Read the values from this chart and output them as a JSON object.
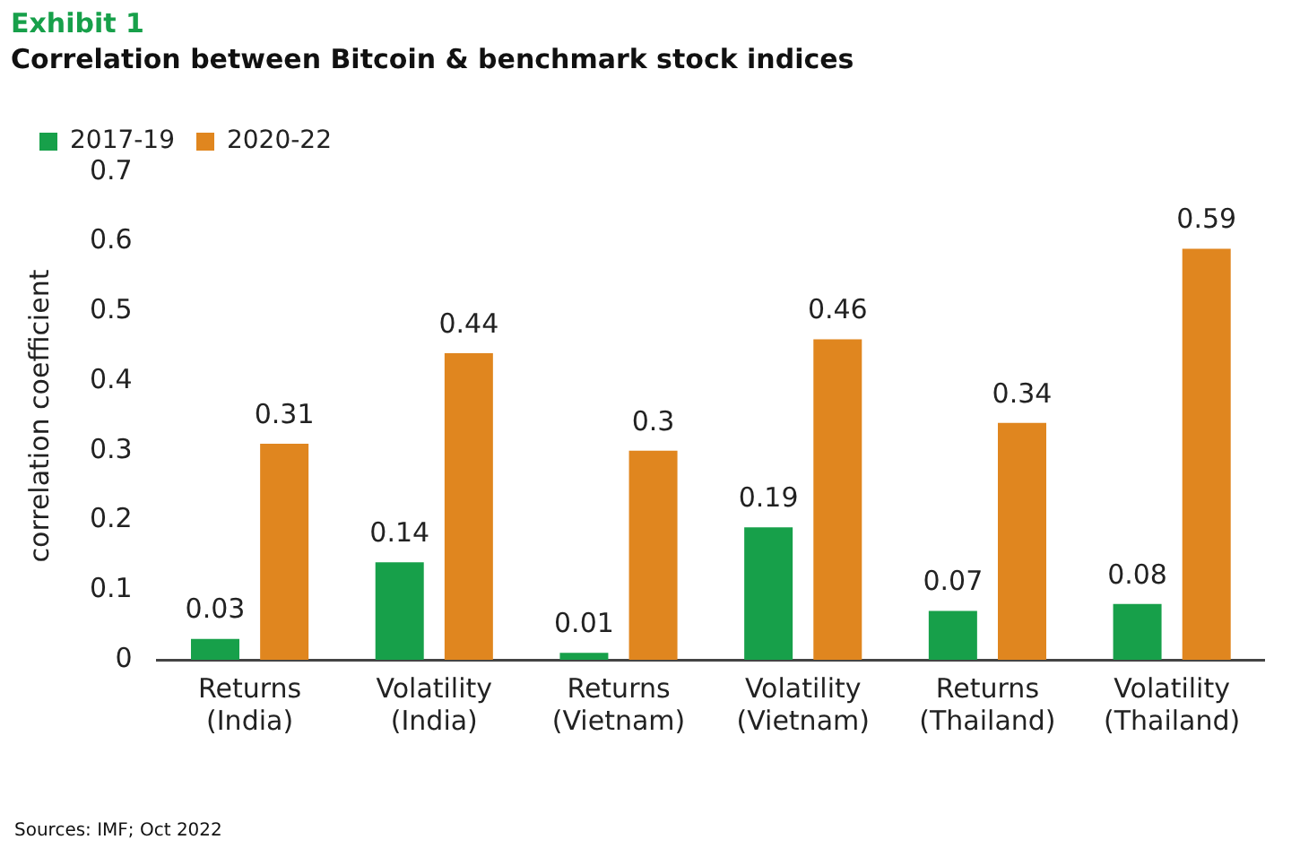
{
  "chart_data": {
    "type": "bar",
    "title": "Exhibit 1",
    "subtitle": "Correlation between Bitcoin & benchmark stock indices",
    "ylabel": "correlation coefficient",
    "categories": [
      "Returns\n(India)",
      "Volatility\n(India)",
      "Returns\n(Vietnam)",
      "Volatility\n(Vietnam)",
      "Returns\n(Thailand)",
      "Volatility\n(Thailand)"
    ],
    "series": [
      {
        "name": "2017-19",
        "color": "#17a04a",
        "values": [
          0.03,
          0.14,
          0.01,
          0.19,
          0.07,
          0.08
        ]
      },
      {
        "name": "2020-22",
        "color": "#e0861f",
        "values": [
          0.31,
          0.44,
          0.3,
          0.46,
          0.34,
          0.59
        ]
      }
    ],
    "ylim": [
      0,
      0.7
    ],
    "yticks": [
      0,
      0.1,
      0.2,
      0.3,
      0.4,
      0.5,
      0.6,
      0.7
    ],
    "grid": false,
    "legend": "top left",
    "data_labels": true,
    "annotations": [
      "Sources: IMF; Oct 2022"
    ]
  }
}
